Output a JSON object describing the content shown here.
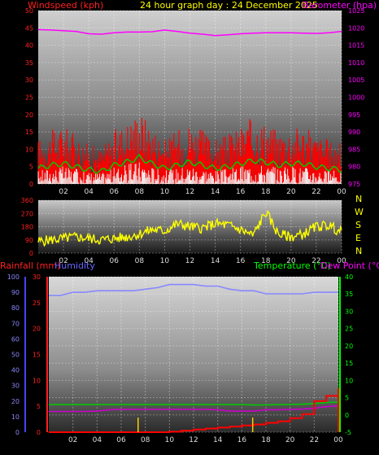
{
  "header": {
    "title": "24 hour graph day : 24 December 2025",
    "wind_label": "Windspeed (kph)",
    "baro_label": "Barometer (hpa)"
  },
  "colors": {
    "wind": "#ff0000",
    "wind_avg": "#00cc00",
    "wind_low": "#f0f0f0",
    "baro": "#ff00ff",
    "dir": "#ffff00",
    "humidity": "#8888ff",
    "temp": "#00cc00",
    "dew": "#cc00cc",
    "rain": "#ff0000",
    "axis_red": "#ff2020",
    "axis_blue": "#4444ff",
    "axis_green": "#00ff00",
    "title_yellow": "#ffff00"
  },
  "lower_labels": {
    "rain": "Rainfall (mm)",
    "humidity": "Humidity",
    "temp": "Temperature (°C)",
    "dew": "Dew Point (°C)"
  },
  "compass": [
    "N",
    "W",
    "S",
    "E",
    "N"
  ],
  "chart_data": [
    {
      "type": "line",
      "title": "24 hour graph day : 24 December 2025",
      "xticks": [
        "02",
        "04",
        "06",
        "08",
        "10",
        "12",
        "14",
        "16",
        "18",
        "20",
        "22",
        "00"
      ],
      "ylabel": "Windspeed (kph)",
      "y2label": "Barometer (hpa)",
      "ylim": [
        0,
        50
      ],
      "y2lim": [
        975,
        1025
      ],
      "yticks": [
        0,
        5,
        10,
        15,
        20,
        25,
        30,
        35,
        40,
        45,
        50
      ],
      "y2ticks": [
        975,
        980,
        985,
        990,
        995,
        1000,
        1005,
        1010,
        1015,
        1020,
        1025
      ],
      "x": [
        0,
        1,
        2,
        3,
        4,
        5,
        6,
        7,
        8,
        9,
        10,
        11,
        12,
        13,
        14,
        15,
        16,
        17,
        18,
        19,
        20,
        21,
        22,
        23,
        24
      ],
      "series": [
        {
          "name": "Windspeed (kph)",
          "values": [
            10,
            12,
            13,
            11,
            9,
            8,
            12,
            14,
            17,
            13,
            10,
            12,
            14,
            12,
            10,
            11,
            13,
            15,
            14,
            12,
            13,
            13,
            11,
            10,
            9
          ]
        },
        {
          "name": "Barometer (hpa)",
          "values": [
            1019.5,
            1019.4,
            1019.2,
            1019.0,
            1018.3,
            1018.2,
            1018.6,
            1018.8,
            1018.8,
            1018.9,
            1019.4,
            1019.0,
            1018.5,
            1018.2,
            1017.8,
            1018.0,
            1018.3,
            1018.5,
            1018.6,
            1018.6,
            1018.6,
            1018.5,
            1018.4,
            1018.6,
            1019.0
          ]
        }
      ]
    },
    {
      "type": "line",
      "xticks": [
        "02",
        "04",
        "06",
        "08",
        "10",
        "12",
        "14",
        "16",
        "18",
        "20",
        "22",
        "00"
      ],
      "ylim": [
        0,
        360
      ],
      "yticks": [
        0,
        90,
        180,
        270,
        360
      ],
      "x": [
        0,
        1,
        2,
        3,
        4,
        5,
        6,
        7,
        8,
        9,
        10,
        11,
        12,
        13,
        14,
        15,
        16,
        17,
        18,
        19,
        20,
        21,
        22,
        23,
        24
      ],
      "series": [
        {
          "name": "Wind direction",
          "values": [
            80,
            90,
            100,
            110,
            100,
            90,
            100,
            110,
            130,
            160,
            150,
            200,
            180,
            170,
            200,
            190,
            160,
            120,
            280,
            130,
            110,
            130,
            180,
            190,
            140
          ]
        }
      ]
    },
    {
      "type": "line",
      "xticks": [
        "02",
        "04",
        "06",
        "08",
        "10",
        "12",
        "14",
        "16",
        "18",
        "20",
        "22",
        "00"
      ],
      "ylabel": "Rainfall (mm)",
      "y2label": "Temperature (°C)",
      "ylim": [
        0,
        30
      ],
      "yticks": [
        0,
        5,
        10,
        15,
        20,
        25,
        30
      ],
      "humidity_ticks": [
        0,
        10,
        20,
        30,
        40,
        50,
        60,
        70,
        80,
        90,
        100
      ],
      "y2lim": [
        -5,
        40
      ],
      "y2ticks": [
        -5,
        0,
        5,
        10,
        15,
        20,
        25,
        30,
        35,
        40
      ],
      "x": [
        0,
        1,
        2,
        3,
        4,
        5,
        6,
        7,
        8,
        9,
        10,
        11,
        12,
        13,
        14,
        15,
        16,
        17,
        18,
        19,
        20,
        21,
        22,
        23,
        24
      ],
      "series": [
        {
          "name": "Humidity",
          "values": [
            88,
            88,
            90,
            90,
            91,
            91,
            91,
            91,
            92,
            93,
            95,
            95,
            95,
            94,
            94,
            92,
            91,
            91,
            89,
            89,
            89,
            89,
            90,
            90,
            90
          ]
        },
        {
          "name": "Temperature (°C)",
          "values": [
            3.0,
            3.0,
            3.0,
            3.0,
            3.0,
            3.0,
            3.0,
            3.0,
            3.0,
            3.0,
            3.0,
            3.0,
            3.0,
            3.0,
            3.0,
            3.0,
            3.0,
            2.9,
            2.9,
            3.0,
            3.0,
            3.1,
            3.3,
            3.6,
            3.7
          ]
        },
        {
          "name": "Dew Point (°C)",
          "values": [
            1.0,
            1.0,
            1.0,
            1.0,
            1.1,
            1.5,
            1.6,
            1.6,
            1.6,
            1.6,
            1.6,
            1.6,
            1.6,
            1.6,
            1.5,
            1.1,
            1.1,
            1.1,
            1.5,
            1.5,
            1.6,
            1.7,
            1.9,
            2.4,
            2.6
          ]
        },
        {
          "name": "Rainfall (mm)",
          "values": [
            0,
            0,
            0,
            0,
            0,
            0,
            0,
            0,
            0,
            0,
            0.1,
            0.3,
            0.5,
            0.7,
            0.9,
            1.1,
            1.3,
            1.5,
            1.8,
            2.1,
            2.7,
            3.5,
            6.0,
            7.0,
            8.5
          ]
        }
      ]
    }
  ]
}
